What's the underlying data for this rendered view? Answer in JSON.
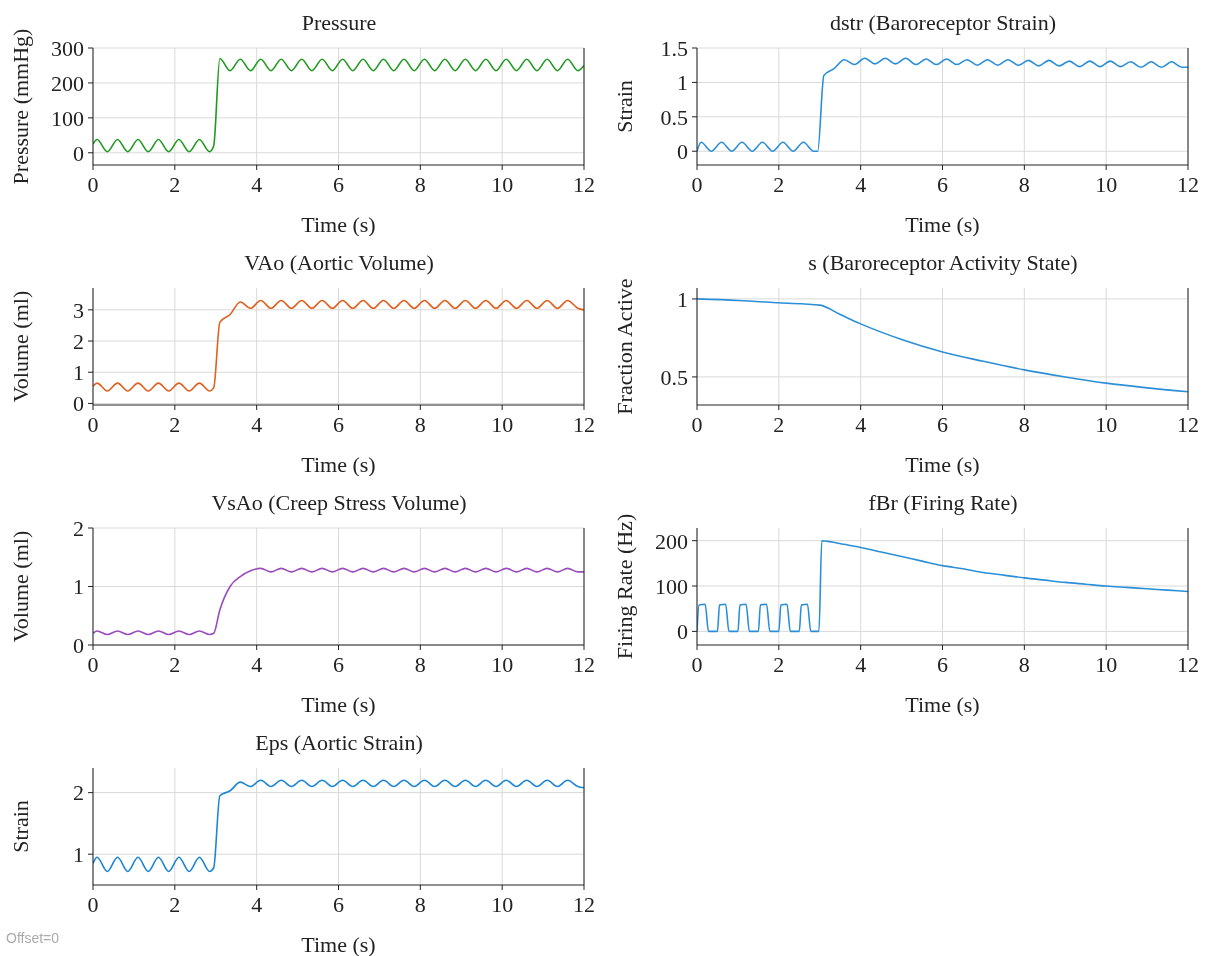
{
  "chart_data": [
    {
      "type": "line",
      "title": "Pressure",
      "xlabel": "Time (s)",
      "ylabel": "Pressure (mmHg)",
      "color": "#1f9a1f",
      "grid": true,
      "xlim": [
        0,
        12
      ],
      "xticks": [
        0,
        2,
        4,
        6,
        8,
        10,
        12
      ],
      "ylim": [
        -35,
        300
      ],
      "yticks": [
        0,
        100,
        200,
        300
      ],
      "x": [
        0,
        0.1,
        0.35,
        0.6,
        0.85,
        1.1,
        1.35,
        1.6,
        1.85,
        2.1,
        2.35,
        2.6,
        2.85,
        2.95,
        3.1,
        3.35,
        3.6,
        3.85,
        4.1,
        4.35,
        4.6,
        4.85,
        5.1,
        5.35,
        5.6,
        5.85,
        6.1,
        6.35,
        6.6,
        6.85,
        7.1,
        7.35,
        7.6,
        7.85,
        8.1,
        8.35,
        8.6,
        8.85,
        9.1,
        9.35,
        9.6,
        9.85,
        10.1,
        10.35,
        10.6,
        10.85,
        11.1,
        11.35,
        11.6,
        11.85,
        12
      ],
      "values": [
        25,
        38,
        3,
        38,
        3,
        38,
        3,
        38,
        3,
        38,
        3,
        38,
        3,
        20,
        270,
        235,
        268,
        235,
        268,
        235,
        268,
        235,
        268,
        235,
        268,
        235,
        268,
        235,
        268,
        235,
        268,
        235,
        268,
        235,
        268,
        235,
        268,
        235,
        268,
        235,
        268,
        235,
        268,
        235,
        268,
        235,
        268,
        235,
        268,
        235,
        250
      ]
    },
    {
      "type": "line",
      "title": "dstr (Baroreceptor Strain)",
      "xlabel": "Time (s)",
      "ylabel": "Strain",
      "color": "#2b8fd8",
      "grid": true,
      "xlim": [
        0,
        12
      ],
      "xticks": [
        0,
        2,
        4,
        6,
        8,
        10,
        12
      ],
      "ylim": [
        -0.2,
        1.5
      ],
      "yticks": [
        0,
        0.5,
        1,
        1.5
      ],
      "x": [
        0,
        0.1,
        0.35,
        0.6,
        0.85,
        1.1,
        1.35,
        1.6,
        1.85,
        2.1,
        2.35,
        2.6,
        2.85,
        2.95,
        3.1,
        3.35,
        3.6,
        3.85,
        4.1,
        4.35,
        4.6,
        4.85,
        5.1,
        5.35,
        5.6,
        5.85,
        6.1,
        6.35,
        6.6,
        6.85,
        7.1,
        7.35,
        7.6,
        7.85,
        8.1,
        8.35,
        8.6,
        8.85,
        9.1,
        9.35,
        9.6,
        9.85,
        10.1,
        10.35,
        10.6,
        10.85,
        11.1,
        11.35,
        11.6,
        11.85,
        12
      ],
      "values": [
        0,
        0.13,
        0,
        0.13,
        0,
        0.13,
        0,
        0.13,
        0,
        0.13,
        0,
        0.13,
        0,
        0,
        1.1,
        1.2,
        1.33,
        1.26,
        1.35,
        1.27,
        1.35,
        1.27,
        1.35,
        1.26,
        1.34,
        1.26,
        1.34,
        1.26,
        1.33,
        1.25,
        1.33,
        1.25,
        1.33,
        1.25,
        1.32,
        1.24,
        1.32,
        1.24,
        1.31,
        1.23,
        1.31,
        1.23,
        1.31,
        1.23,
        1.3,
        1.22,
        1.3,
        1.22,
        1.3,
        1.22,
        1.22
      ]
    },
    {
      "type": "line",
      "title": "VAo (Aortic Volume)",
      "xlabel": "Time (s)",
      "ylabel": "Volume (ml)",
      "color": "#e0601f",
      "grid": true,
      "xlim": [
        0,
        12
      ],
      "xticks": [
        0,
        2,
        4,
        6,
        8,
        10,
        12
      ],
      "ylim": [
        -0.05,
        3.7
      ],
      "yticks": [
        0,
        1,
        2,
        3
      ],
      "x": [
        0,
        0.1,
        0.35,
        0.6,
        0.85,
        1.1,
        1.35,
        1.6,
        1.85,
        2.1,
        2.35,
        2.6,
        2.85,
        2.95,
        3.1,
        3.35,
        3.6,
        3.85,
        4.1,
        4.35,
        4.6,
        4.85,
        5.1,
        5.35,
        5.6,
        5.85,
        6.1,
        6.35,
        6.6,
        6.85,
        7.1,
        7.35,
        7.6,
        7.85,
        8.1,
        8.35,
        8.6,
        8.85,
        9.1,
        9.35,
        9.6,
        9.85,
        10.1,
        10.35,
        10.6,
        10.85,
        11.1,
        11.35,
        11.6,
        11.85,
        12
      ],
      "values": [
        0.55,
        0.65,
        0.4,
        0.65,
        0.4,
        0.65,
        0.4,
        0.65,
        0.4,
        0.65,
        0.4,
        0.65,
        0.4,
        0.5,
        2.6,
        2.85,
        3.25,
        3.05,
        3.3,
        3.05,
        3.3,
        3.05,
        3.3,
        3.05,
        3.3,
        3.05,
        3.3,
        3.05,
        3.3,
        3.05,
        3.3,
        3.05,
        3.3,
        3.05,
        3.3,
        3.05,
        3.3,
        3.05,
        3.3,
        3.05,
        3.3,
        3.05,
        3.3,
        3.05,
        3.3,
        3.05,
        3.3,
        3.05,
        3.3,
        3.05,
        3.0
      ]
    },
    {
      "type": "line",
      "title": "s (Baroreceptor Activity State)",
      "xlabel": "Time (s)",
      "ylabel": "Fraction Active",
      "color": "#2b8fd8",
      "grid": true,
      "xlim": [
        0,
        12
      ],
      "xticks": [
        0,
        2,
        4,
        6,
        8,
        10,
        12
      ],
      "ylim": [
        0.32,
        1.07
      ],
      "yticks": [
        0.5,
        1
      ],
      "x": [
        0,
        1,
        2,
        3,
        3.5,
        4,
        5,
        6,
        7,
        8,
        9,
        10,
        11,
        12
      ],
      "values": [
        1.0,
        0.99,
        0.975,
        0.96,
        0.9,
        0.84,
        0.74,
        0.66,
        0.6,
        0.545,
        0.5,
        0.46,
        0.43,
        0.405
      ]
    },
    {
      "type": "line",
      "title": "VsAo (Creep Stress Volume)",
      "xlabel": "Time (s)",
      "ylabel": "Volume (ml)",
      "color": "#9a4dbd",
      "grid": true,
      "xlim": [
        0,
        12
      ],
      "xticks": [
        0,
        2,
        4,
        6,
        8,
        10,
        12
      ],
      "ylim": [
        0,
        2
      ],
      "yticks": [
        0,
        1,
        2
      ],
      "x": [
        0,
        0.1,
        0.35,
        0.6,
        0.85,
        1.1,
        1.35,
        1.6,
        1.85,
        2.1,
        2.35,
        2.6,
        2.85,
        2.95,
        3.1,
        3.35,
        3.6,
        3.85,
        4.1,
        4.35,
        4.6,
        4.85,
        5.1,
        5.35,
        5.6,
        5.85,
        6.1,
        6.35,
        6.6,
        6.85,
        7.1,
        7.35,
        7.6,
        7.85,
        8.1,
        8.35,
        8.6,
        8.85,
        9.1,
        9.35,
        9.6,
        9.85,
        10.1,
        10.35,
        10.6,
        10.85,
        11.1,
        11.35,
        11.6,
        11.85,
        12
      ],
      "values": [
        0.2,
        0.24,
        0.18,
        0.24,
        0.18,
        0.24,
        0.18,
        0.24,
        0.18,
        0.24,
        0.18,
        0.24,
        0.18,
        0.2,
        0.6,
        1.0,
        1.17,
        1.27,
        1.31,
        1.25,
        1.31,
        1.25,
        1.31,
        1.25,
        1.31,
        1.25,
        1.31,
        1.25,
        1.31,
        1.25,
        1.31,
        1.25,
        1.31,
        1.25,
        1.31,
        1.25,
        1.31,
        1.25,
        1.31,
        1.25,
        1.31,
        1.25,
        1.31,
        1.25,
        1.31,
        1.25,
        1.31,
        1.25,
        1.31,
        1.25,
        1.25
      ]
    },
    {
      "type": "line",
      "title": "fBr (Firing Rate)",
      "xlabel": "Time (s)",
      "ylabel": "Firing Rate (Hz)",
      "color": "#2b8fd8",
      "grid": true,
      "xlim": [
        0,
        12
      ],
      "xticks": [
        0,
        2,
        4,
        6,
        8,
        10,
        12
      ],
      "ylim": [
        -30,
        228
      ],
      "yticks": [
        0,
        100,
        200
      ],
      "x": [
        0,
        0.05,
        0.2,
        0.28,
        0.5,
        0.55,
        0.7,
        0.78,
        1,
        1.05,
        1.2,
        1.28,
        1.5,
        1.55,
        1.7,
        1.78,
        2,
        2.05,
        2.2,
        2.28,
        2.5,
        2.55,
        2.7,
        2.78,
        2.98,
        3.05,
        3.3,
        3.6,
        4,
        4.5,
        5,
        5.5,
        6,
        6.5,
        7,
        7.5,
        8,
        8.5,
        9,
        9.5,
        10,
        10.5,
        11,
        11.5,
        12
      ],
      "values": [
        0,
        58,
        60,
        0,
        0,
        58,
        60,
        0,
        0,
        58,
        60,
        0,
        0,
        58,
        60,
        0,
        0,
        58,
        60,
        0,
        0,
        58,
        60,
        0,
        0,
        200,
        197,
        192,
        185,
        175,
        165,
        155,
        145,
        138,
        130,
        124,
        118,
        113,
        108,
        104,
        100,
        97,
        94,
        91,
        88
      ]
    },
    {
      "type": "line",
      "title": "Eps (Aortic Strain)",
      "xlabel": "Time (s)",
      "ylabel": "Strain",
      "color": "#1c86d4",
      "grid": true,
      "xlim": [
        0,
        12
      ],
      "xticks": [
        0,
        2,
        4,
        6,
        8,
        10,
        12
      ],
      "ylim": [
        0.5,
        2.4
      ],
      "yticks": [
        1,
        2
      ],
      "annotations": [
        "Offset=0"
      ],
      "x": [
        0,
        0.1,
        0.35,
        0.6,
        0.85,
        1.1,
        1.35,
        1.6,
        1.85,
        2.1,
        2.35,
        2.6,
        2.85,
        2.95,
        3.1,
        3.35,
        3.6,
        3.85,
        4.1,
        4.35,
        4.6,
        4.85,
        5.1,
        5.35,
        5.6,
        5.85,
        6.1,
        6.35,
        6.6,
        6.85,
        7.1,
        7.35,
        7.6,
        7.85,
        8.1,
        8.35,
        8.6,
        8.85,
        9.1,
        9.35,
        9.6,
        9.85,
        10.1,
        10.35,
        10.6,
        10.85,
        11.1,
        11.35,
        11.6,
        11.85,
        12
      ],
      "values": [
        0.85,
        0.95,
        0.72,
        0.95,
        0.72,
        0.95,
        0.72,
        0.95,
        0.72,
        0.95,
        0.72,
        0.95,
        0.72,
        0.78,
        1.95,
        2.03,
        2.17,
        2.1,
        2.2,
        2.1,
        2.2,
        2.1,
        2.2,
        2.1,
        2.2,
        2.1,
        2.2,
        2.1,
        2.2,
        2.1,
        2.2,
        2.1,
        2.2,
        2.1,
        2.2,
        2.1,
        2.2,
        2.1,
        2.2,
        2.1,
        2.2,
        2.1,
        2.2,
        2.1,
        2.2,
        2.1,
        2.2,
        2.1,
        2.2,
        2.1,
        2.08
      ]
    }
  ]
}
